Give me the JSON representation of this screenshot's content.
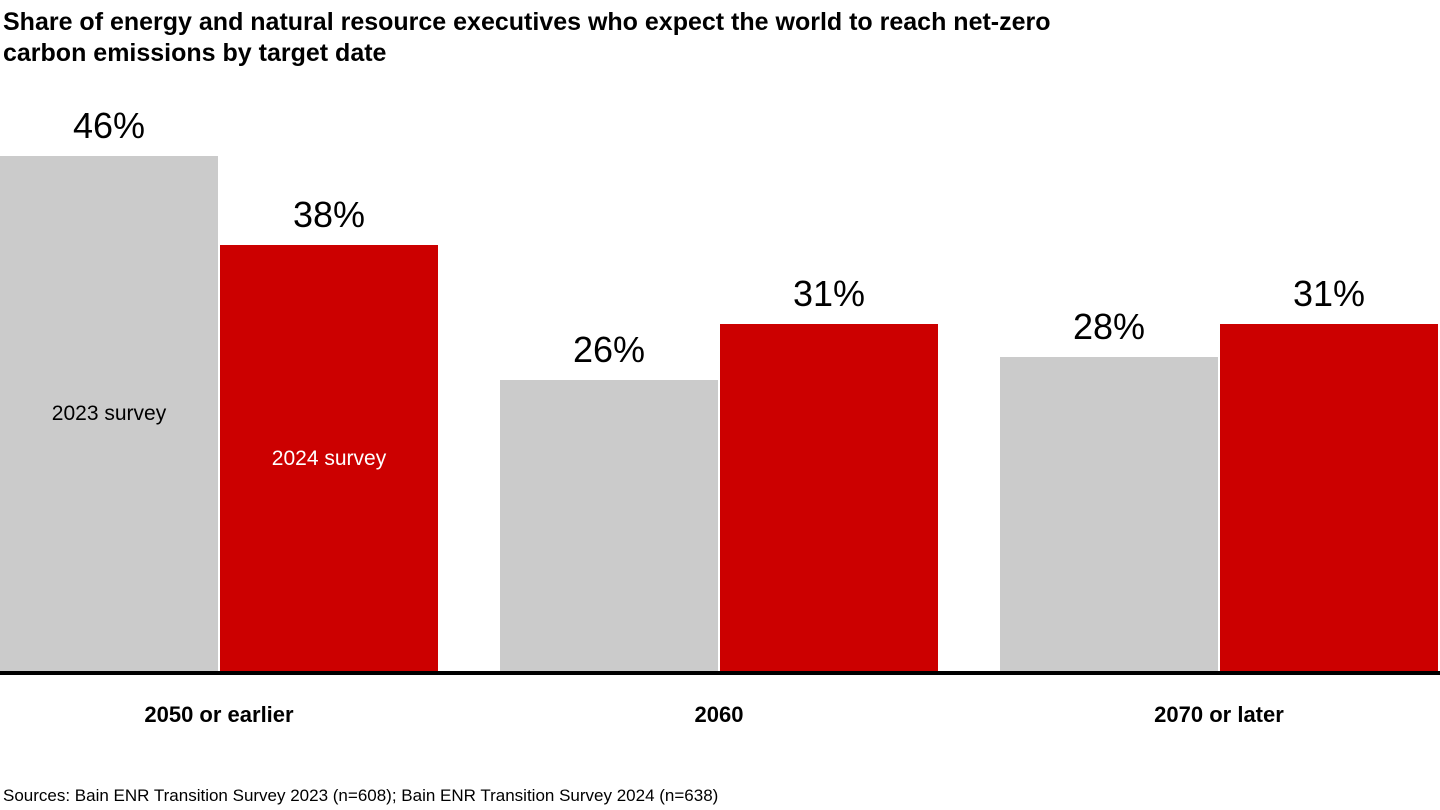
{
  "chart_data": {
    "type": "bar",
    "title": "Share of energy and natural resource executives who expect the world to reach net-zero\ncarbon emissions by target date",
    "categories": [
      "2050 or earlier",
      "2060",
      "2070 or later"
    ],
    "series": [
      {
        "name": "2023 survey",
        "color": "#cbcbcb",
        "label_color": "#000000",
        "values": [
          46,
          26,
          28
        ]
      },
      {
        "name": "2024 survey",
        "color": "#cc0000",
        "label_color": "#ffffff",
        "values": [
          38,
          31,
          31
        ]
      }
    ],
    "value_suffix": "%",
    "ylim": [
      0,
      50
    ],
    "grid": false,
    "legend_position": "inside-first-group-bars",
    "axis_color": "#000000",
    "source": "Sources: Bain ENR Transition Survey 2023 (n=608); Bain ENR Transition Survey 2024 (n=638)"
  }
}
